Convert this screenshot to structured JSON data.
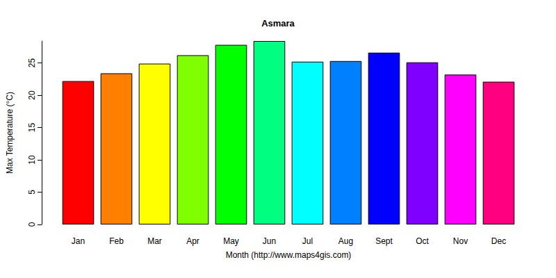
{
  "chart_data": {
    "type": "bar",
    "title": "Asmara",
    "x_label": "Month (http://www.maps4gis.com)",
    "y_label": "Max Temperature (°C)",
    "categories": [
      "Jan",
      "Feb",
      "Mar",
      "Apr",
      "May",
      "Jun",
      "Jul",
      "Aug",
      "Sept",
      "Oct",
      "Nov",
      "Dec"
    ],
    "values": [
      22.2,
      23.4,
      24.9,
      26.2,
      27.8,
      28.4,
      25.2,
      25.3,
      26.6,
      25.1,
      23.2,
      22.1
    ],
    "colors": [
      "#FF0000",
      "#FF8000",
      "#FFFF00",
      "#80FF00",
      "#00FF00",
      "#00FF80",
      "#00FFFF",
      "#0080FF",
      "#0000FF",
      "#8000FF",
      "#FF00FF",
      "#FF0080"
    ],
    "ylim": [
      0,
      28.4
    ],
    "yticks": [
      0,
      5,
      10,
      15,
      20,
      25
    ],
    "grid": false,
    "data_labels": false
  }
}
